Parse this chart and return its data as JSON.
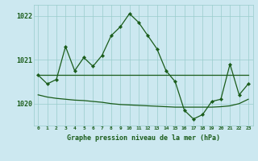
{
  "title": "Graphe pression niveau de la mer (hPa)",
  "background_color": "#cce8f0",
  "grid_color": "#99cccc",
  "line_color": "#1a5c1a",
  "x_labels": [
    "0",
    "1",
    "2",
    "3",
    "4",
    "5",
    "6",
    "7",
    "8",
    "9",
    "10",
    "11",
    "12",
    "13",
    "14",
    "15",
    "16",
    "17",
    "18",
    "19",
    "20",
    "21",
    "22",
    "23"
  ],
  "ylim": [
    1019.5,
    1022.25
  ],
  "yticks": [
    1020,
    1021,
    1022
  ],
  "series1": [
    1020.65,
    1020.45,
    1020.55,
    1021.3,
    1020.75,
    1021.05,
    1020.85,
    1021.1,
    1021.55,
    1021.75,
    1022.05,
    1021.85,
    1021.55,
    1021.25,
    1020.75,
    1020.5,
    1019.85,
    1019.65,
    1019.75,
    1020.05,
    1020.1,
    1020.9,
    1020.2,
    1020.45
  ],
  "series2": [
    1020.65,
    1020.65,
    1020.65,
    1020.65,
    1020.65,
    1020.65,
    1020.65,
    1020.65,
    1020.65,
    1020.65,
    1020.65,
    1020.65,
    1020.65,
    1020.65,
    1020.65,
    1020.65,
    1020.65,
    1020.65,
    1020.65,
    1020.65,
    1020.65,
    1020.65,
    1020.65,
    1020.65
  ],
  "series3": [
    1020.2,
    1020.15,
    1020.12,
    1020.1,
    1020.08,
    1020.07,
    1020.05,
    1020.03,
    1020.0,
    1019.98,
    1019.97,
    1019.96,
    1019.95,
    1019.94,
    1019.93,
    1019.92,
    1019.92,
    1019.92,
    1019.92,
    1019.92,
    1019.93,
    1019.95,
    1020.0,
    1020.1
  ]
}
